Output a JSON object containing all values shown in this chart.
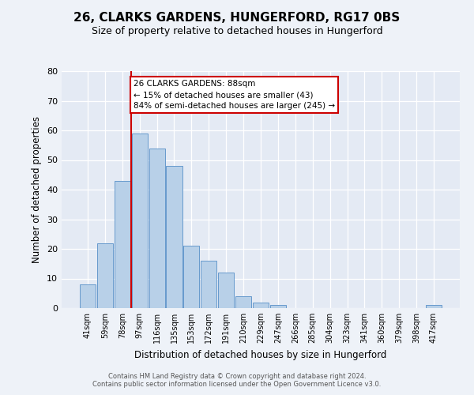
{
  "title": "26, CLARKS GARDENS, HUNGERFORD, RG17 0BS",
  "subtitle": "Size of property relative to detached houses in Hungerford",
  "xlabel": "Distribution of detached houses by size in Hungerford",
  "ylabel": "Number of detached properties",
  "bin_labels": [
    "41sqm",
    "59sqm",
    "78sqm",
    "97sqm",
    "116sqm",
    "135sqm",
    "153sqm",
    "172sqm",
    "191sqm",
    "210sqm",
    "229sqm",
    "247sqm",
    "266sqm",
    "285sqm",
    "304sqm",
    "323sqm",
    "341sqm",
    "360sqm",
    "379sqm",
    "398sqm",
    "417sqm"
  ],
  "bar_heights": [
    8,
    22,
    43,
    59,
    54,
    48,
    21,
    16,
    12,
    4,
    2,
    1,
    0,
    0,
    0,
    0,
    0,
    0,
    0,
    0,
    1
  ],
  "bar_color": "#b8d0e8",
  "bar_edge_color": "#6699cc",
  "vline_color": "#cc0000",
  "annotation_box_color": "#cc0000",
  "ylim": [
    0,
    80
  ],
  "yticks": [
    0,
    10,
    20,
    30,
    40,
    50,
    60,
    70,
    80
  ],
  "footer_line1": "Contains HM Land Registry data © Crown copyright and database right 2024.",
  "footer_line2": "Contains public sector information licensed under the Open Government Licence v3.0.",
  "background_color": "#eef2f8",
  "plot_background": "#e4eaf4",
  "title_fontsize": 11,
  "subtitle_fontsize": 9,
  "annotation_line1": "26 CLARKS GARDENS: 88sqm",
  "annotation_line2": "← 15% of detached houses are smaller (43)",
  "annotation_line3": "84% of semi-detached houses are larger (245) →"
}
